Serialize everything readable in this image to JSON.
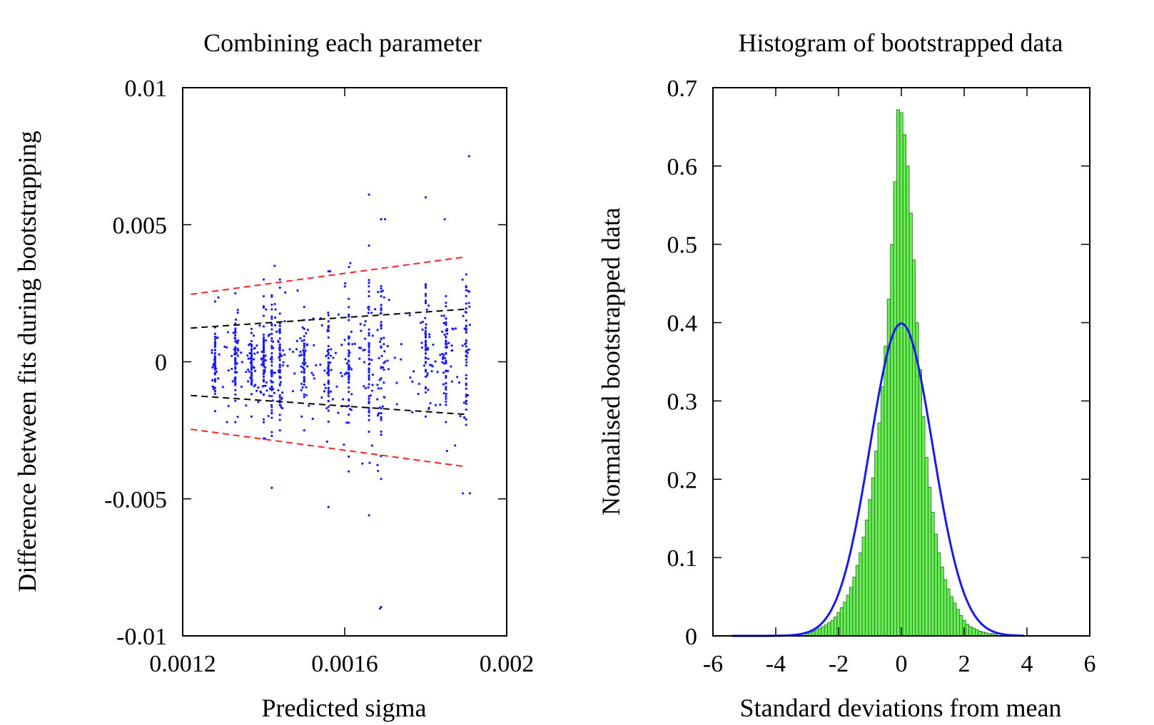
{
  "chart_data": [
    {
      "type": "scatter",
      "title": "Combining each parameter",
      "xlabel": "Predicted sigma",
      "ylabel": "Difference between fits during bootstrapping",
      "xlim": [
        0.0012,
        0.002
      ],
      "ylim": [
        -0.01,
        0.01
      ],
      "x_ticks": [
        "0.0012",
        "0.0016",
        "0.002"
      ],
      "y_ticks": [
        "-0.01",
        "-0.005",
        "0",
        "0.005",
        "0.01"
      ],
      "x_tick_values": [
        0.0012,
        0.0016,
        0.002
      ],
      "y_tick_values": [
        -0.01,
        -0.005,
        0,
        0.005,
        0.01
      ],
      "grid": false,
      "colors": {
        "points": "#1a1aff",
        "inner_band": "#000000",
        "outer_band": "#ff2020"
      },
      "point_columns": [
        {
          "x": 0.00128,
          "y_min": -0.0018,
          "y_max": 0.0022
        },
        {
          "x": 0.00133,
          "y_min": -0.0022,
          "y_max": 0.0025
        },
        {
          "x": 0.00137,
          "y_min": -0.002,
          "y_max": 0.0012
        },
        {
          "x": 0.0014,
          "y_min": -0.0028,
          "y_max": 0.003
        },
        {
          "x": 0.00142,
          "y_min": -0.0046,
          "y_max": 0.0035
        },
        {
          "x": 0.00144,
          "y_min": -0.0025,
          "y_max": 0.003
        },
        {
          "x": 0.0015,
          "y_min": -0.0025,
          "y_max": 0.002
        },
        {
          "x": 0.00156,
          "y_min": -0.0053,
          "y_max": 0.0033
        },
        {
          "x": 0.00161,
          "y_min": -0.004,
          "y_max": 0.0036
        },
        {
          "x": 0.00166,
          "y_min": -0.0056,
          "y_max": 0.0061
        },
        {
          "x": 0.00169,
          "y_min": -0.009,
          "y_max": 0.0052
        },
        {
          "x": 0.0018,
          "y_min": -0.002,
          "y_max": 0.006
        },
        {
          "x": 0.00185,
          "y_min": -0.0022,
          "y_max": 0.0052
        },
        {
          "x": 0.0019,
          "y_min": -0.0048,
          "y_max": 0.0075
        }
      ],
      "lines": [
        {
          "name": "inner-upper",
          "color": "#000000",
          "x": [
            0.00122,
            0.0019
          ],
          "y": [
            0.00123,
            0.00192
          ]
        },
        {
          "name": "inner-lower",
          "color": "#000000",
          "x": [
            0.00122,
            0.0019
          ],
          "y": [
            -0.00123,
            -0.00192
          ]
        },
        {
          "name": "outer-upper",
          "color": "#ff2020",
          "x": [
            0.00122,
            0.0019
          ],
          "y": [
            0.00246,
            0.00383
          ]
        },
        {
          "name": "outer-lower",
          "color": "#ff2020",
          "x": [
            0.00122,
            0.0019
          ],
          "y": [
            -0.00246,
            -0.00383
          ]
        }
      ]
    },
    {
      "type": "bar",
      "title": "Histogram of bootstrapped data",
      "xlabel": "Standard deviations from mean",
      "ylabel": "Normalised bootstrapped data",
      "xlim": [
        -6,
        6
      ],
      "ylim": [
        0,
        0.7
      ],
      "x_ticks": [
        "-6",
        "-4",
        "-2",
        "0",
        "2",
        "4",
        "6"
      ],
      "y_ticks": [
        "0",
        "0.1",
        "0.2",
        "0.3",
        "0.4",
        "0.5",
        "0.6",
        "0.7"
      ],
      "x_tick_values": [
        -6,
        -4,
        -2,
        0,
        2,
        4,
        6
      ],
      "y_tick_values": [
        0,
        0.1,
        0.2,
        0.3,
        0.4,
        0.5,
        0.6,
        0.7
      ],
      "grid": false,
      "colors": {
        "bars": "#66ee55",
        "bar_edge": "#2a6a1a",
        "curve": "#1a1aee"
      },
      "bin_width": 0.1,
      "bins_x": [
        -3.0,
        -2.9,
        -2.8,
        -2.7,
        -2.6,
        -2.5,
        -2.4,
        -2.3,
        -2.2,
        -2.1,
        -2.0,
        -1.9,
        -1.8,
        -1.7,
        -1.6,
        -1.5,
        -1.4,
        -1.3,
        -1.2,
        -1.1,
        -1.0,
        -0.9,
        -0.8,
        -0.7,
        -0.6,
        -0.5,
        -0.4,
        -0.3,
        -0.2,
        -0.1,
        0.0,
        0.1,
        0.2,
        0.3,
        0.4,
        0.5,
        0.6,
        0.7,
        0.8,
        0.9,
        1.0,
        1.1,
        1.2,
        1.3,
        1.4,
        1.5,
        1.6,
        1.7,
        1.8,
        1.9,
        2.0,
        2.1,
        2.2,
        2.3,
        2.4,
        2.5,
        2.6,
        2.7,
        2.8,
        2.9,
        3.0
      ],
      "values": [
        0.004,
        0.005,
        0.006,
        0.008,
        0.01,
        0.012,
        0.014,
        0.017,
        0.02,
        0.024,
        0.03,
        0.036,
        0.043,
        0.052,
        0.062,
        0.075,
        0.09,
        0.106,
        0.126,
        0.148,
        0.174,
        0.202,
        0.236,
        0.272,
        0.318,
        0.37,
        0.43,
        0.5,
        0.58,
        0.672,
        0.668,
        0.64,
        0.6,
        0.54,
        0.48,
        0.4,
        0.34,
        0.28,
        0.228,
        0.19,
        0.158,
        0.13,
        0.106,
        0.088,
        0.072,
        0.06,
        0.05,
        0.042,
        0.034,
        0.026,
        0.02,
        0.015,
        0.012,
        0.01,
        0.008,
        0.006,
        0.005,
        0.004,
        0.003,
        0.003,
        0.002
      ],
      "curve": {
        "name": "gaussian",
        "mean": 0,
        "sd": 1,
        "x_range": [
          -5.4,
          3.9
        ]
      }
    }
  ]
}
